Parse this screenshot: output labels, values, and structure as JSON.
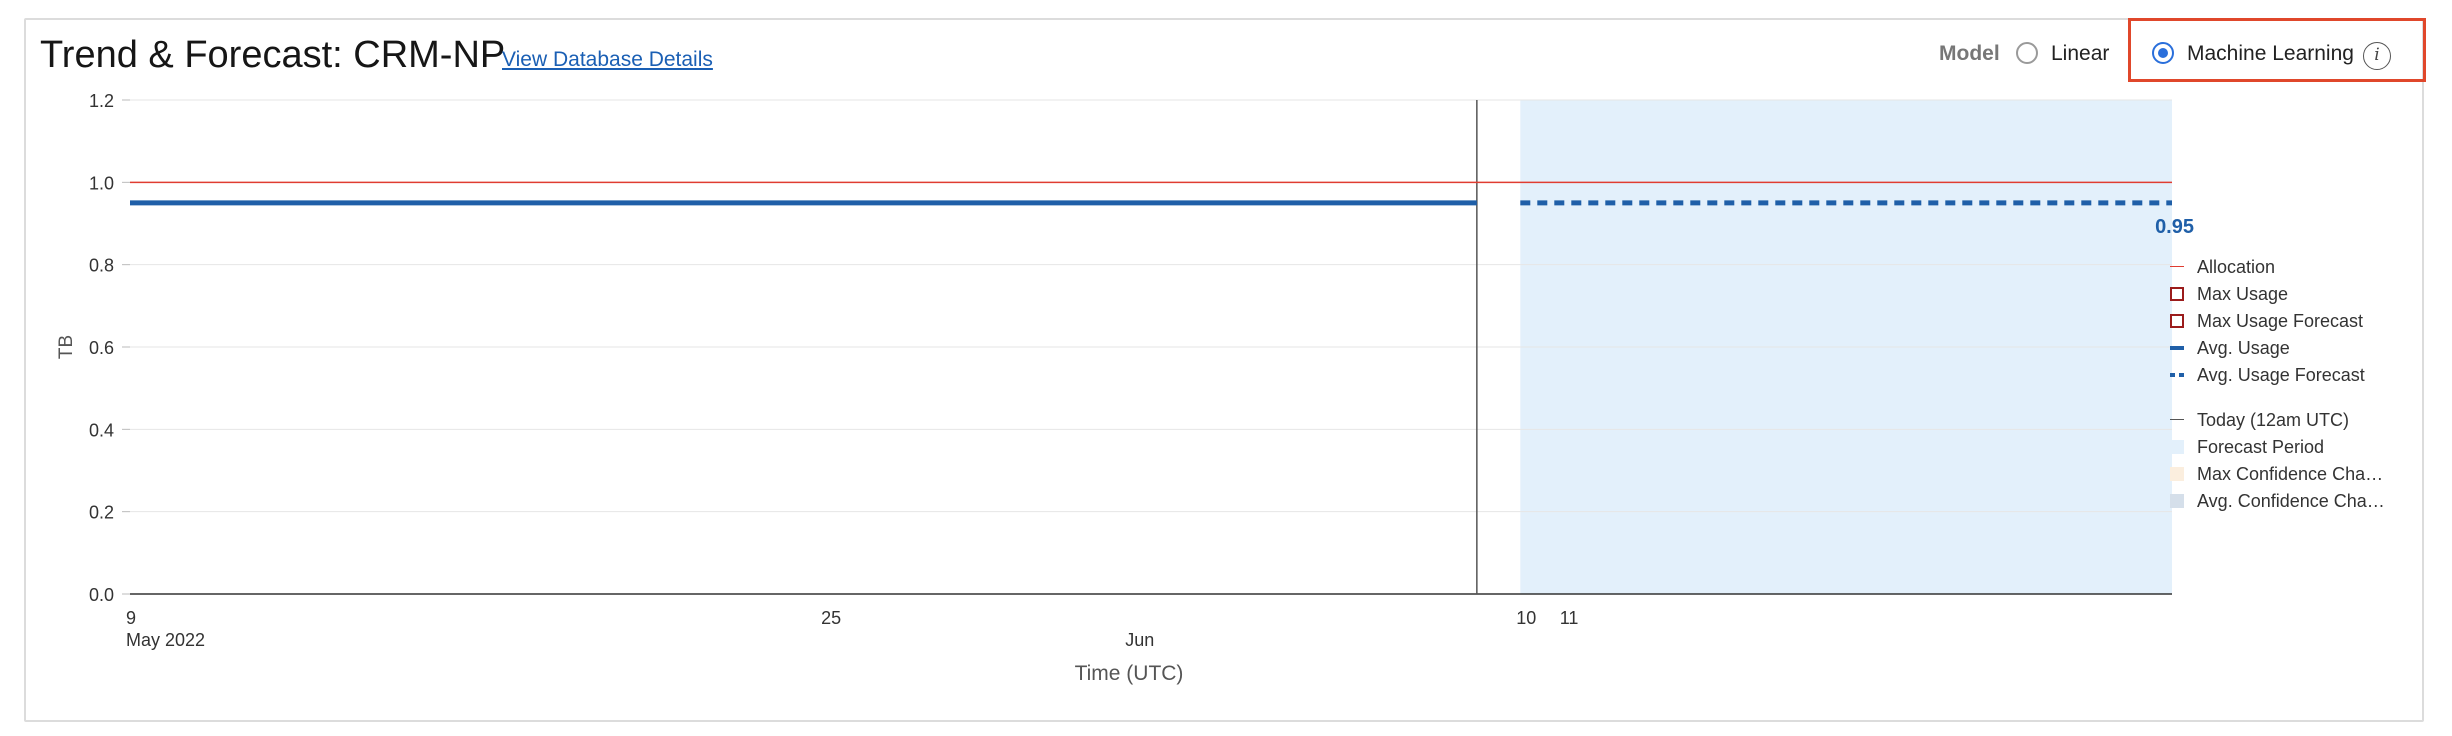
{
  "header": {
    "title": "Trend & Forecast: CRM-NP",
    "details_link": "View Database Details"
  },
  "model": {
    "label": "Model",
    "options": [
      {
        "label": "Linear",
        "selected": false
      },
      {
        "label": "Machine Learning",
        "selected": true
      }
    ],
    "info_icon": "info-icon"
  },
  "chart_data": {
    "type": "line",
    "ylabel": "TB",
    "xlabel": "Time (UTC)",
    "ylim": [
      0,
      1.2
    ],
    "yticks": [
      {
        "value": 0.0,
        "label": "0.0"
      },
      {
        "value": 0.2,
        "label": "0.2"
      },
      {
        "value": 0.4,
        "label": "0.4"
      },
      {
        "value": 0.6,
        "label": "0.6"
      },
      {
        "value": 0.8,
        "label": "0.8"
      },
      {
        "value": 1.0,
        "label": "1.0"
      },
      {
        "value": 1.2,
        "label": "1.2"
      }
    ],
    "xlim": [
      "2022-05-09",
      "2022-06-25"
    ],
    "xticks": [
      {
        "date": "2022-05-09",
        "label": "9",
        "sublabel": "May 2022"
      },
      {
        "date": "2022-05-25",
        "label": "25",
        "sublabel": ""
      },
      {
        "date": "2022-06-01",
        "label": "",
        "sublabel": "Jun"
      },
      {
        "date": "2022-06-10",
        "label": "10",
        "sublabel": ""
      },
      {
        "date": "2022-06-11",
        "label": "11",
        "sublabel": ""
      }
    ],
    "today": "2022-06-09",
    "forecast_period": [
      "2022-06-10",
      "2022-06-25"
    ],
    "series": [
      {
        "name": "Allocation",
        "color": "#e03c31",
        "style": "solid",
        "points": [
          [
            "2022-05-09",
            1.0
          ],
          [
            "2022-06-25",
            1.0
          ]
        ]
      },
      {
        "name": "Avg. Usage",
        "color": "#1f5fa8",
        "style": "solid",
        "points": [
          [
            "2022-05-09",
            0.95
          ],
          [
            "2022-06-09",
            0.95
          ]
        ]
      },
      {
        "name": "Avg. Usage Forecast",
        "color": "#1f5fa8",
        "style": "dashed",
        "points": [
          [
            "2022-06-10",
            0.95
          ],
          [
            "2022-06-25",
            0.95
          ]
        ]
      }
    ],
    "data_label": {
      "text": "0.95",
      "date": "2022-06-25",
      "value": 0.95,
      "color": "#1f5fa8"
    },
    "legend": {
      "placement": "right",
      "items": [
        {
          "label": "Allocation",
          "kind": "line",
          "color": "#e03c31"
        },
        {
          "label": "Max Usage",
          "kind": "box",
          "color": "#9b1c1c"
        },
        {
          "label": "Max Usage Forecast",
          "kind": "box",
          "color": "#9b1c1c"
        },
        {
          "label": "Avg. Usage",
          "kind": "thick",
          "color": "#1f5fa8"
        },
        {
          "label": "Avg. Usage Forecast",
          "kind": "dashed",
          "color": "#1f5fa8"
        },
        {
          "label": "Today (12am UTC)",
          "kind": "line",
          "color": "#555555"
        },
        {
          "label": "Forecast Period",
          "kind": "fill",
          "color": "#e3f0fb"
        },
        {
          "label": "Max Confidence Cha…",
          "kind": "fill",
          "color": "#fbeede"
        },
        {
          "label": "Avg. Confidence Cha…",
          "kind": "fill",
          "color": "#d5dfea"
        }
      ]
    }
  }
}
